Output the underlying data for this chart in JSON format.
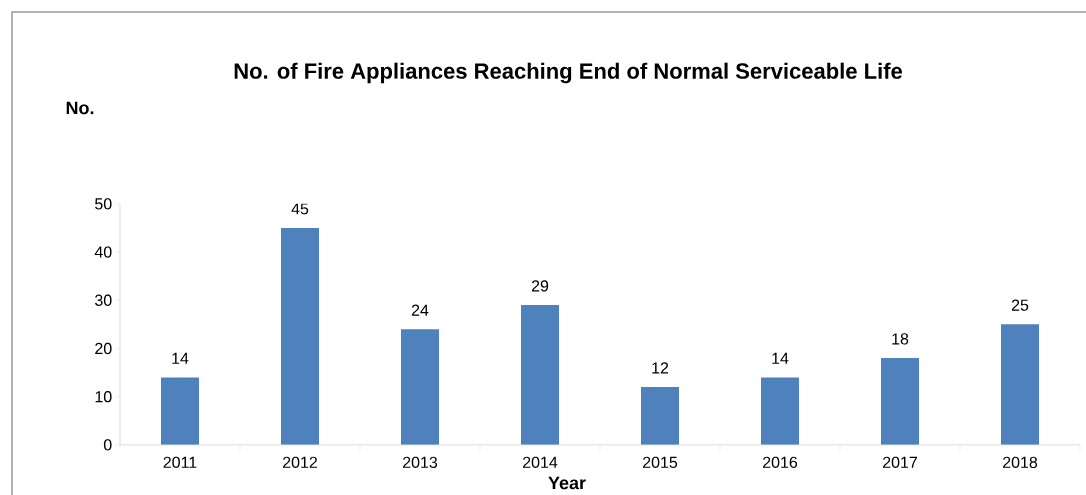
{
  "chart_data": {
    "type": "bar",
    "title": "No. of Fire Appliances Reaching End of Normal Serviceable Life",
    "ylabel": "No.",
    "xlabel": "Year",
    "categories": [
      "2011",
      "2012",
      "2013",
      "2014",
      "2015",
      "2016",
      "2017",
      "2018"
    ],
    "values": [
      14,
      45,
      24,
      29,
      12,
      14,
      18,
      25
    ],
    "color": "#4f81bd",
    "ylim": [
      0,
      50
    ],
    "yticks": [
      0,
      10,
      20,
      30,
      40,
      50
    ],
    "data_labels": true,
    "grid": false
  }
}
